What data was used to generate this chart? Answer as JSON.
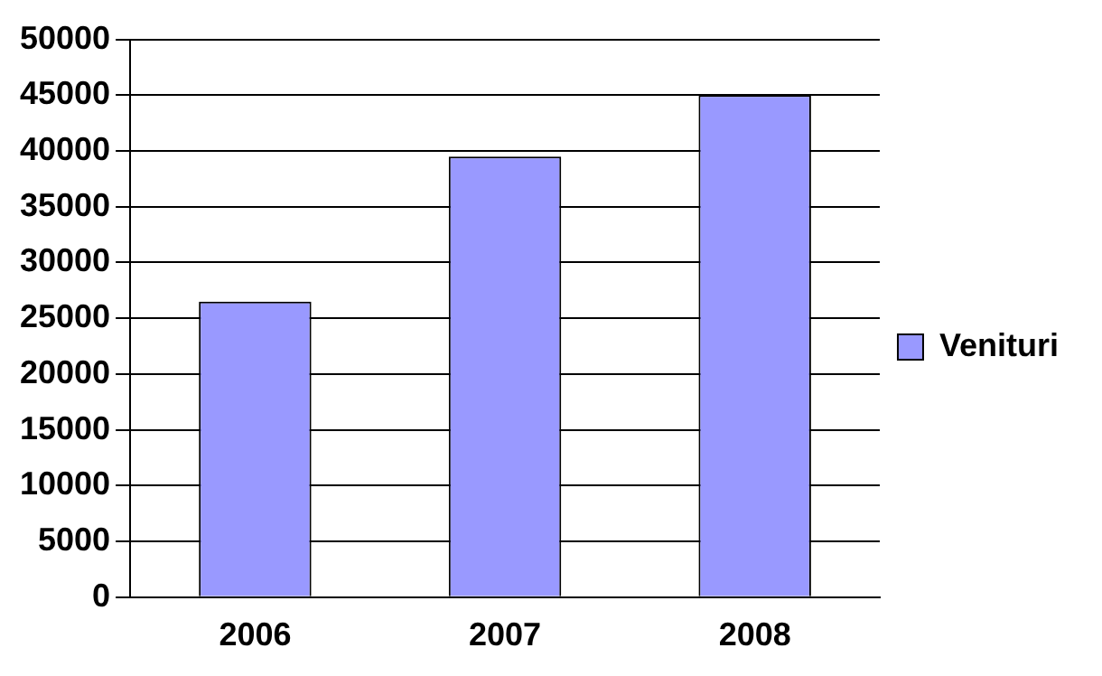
{
  "chart_data": {
    "type": "bar",
    "categories": [
      "2006",
      "2007",
      "2008"
    ],
    "series": [
      {
        "name": "Venituri",
        "color": "#9999ff",
        "values": [
          26500,
          39500,
          45000
        ]
      }
    ],
    "ylim": [
      0,
      50000
    ],
    "yticks": [
      0,
      5000,
      10000,
      15000,
      20000,
      25000,
      30000,
      35000,
      40000,
      45000,
      50000
    ],
    "grid": "y",
    "legend": "right"
  }
}
